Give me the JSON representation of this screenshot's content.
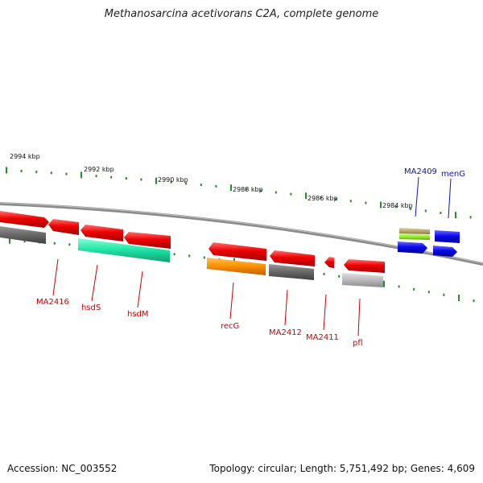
{
  "title": "Methanosarcina acetivorans C2A, complete genome",
  "footer": {
    "accession": "Accession: NC_003552",
    "summary": "Topology: circular; Length: 5,751,492 bp; Genes: 4,609"
  },
  "scale_labels": [
    "2994 kbp",
    "2992 kbp",
    "2990 kbp",
    "2988 kbp",
    "2986 kbp",
    "2984 kbp"
  ],
  "gene_labels": {
    "forward": [
      "MA2409",
      "menG"
    ],
    "reverse": [
      "MA2416",
      "hsdS",
      "hsdM",
      "recG",
      "MA2412",
      "MA2411",
      "pfl"
    ]
  },
  "colors": {
    "forward_label": "#1010c0",
    "reverse_label": "#cc0000",
    "backbone": "#8a8a8a",
    "tick": "#2a8a2a",
    "red": "#ee0000",
    "dark_gray": "#6a6a6a",
    "light_gray": "#bdbdbd",
    "teal": "#22e6a8",
    "orange": "#ff9400",
    "blue": "#0a0aee",
    "olive": "#b8a86a",
    "lime": "#99ee33"
  }
}
